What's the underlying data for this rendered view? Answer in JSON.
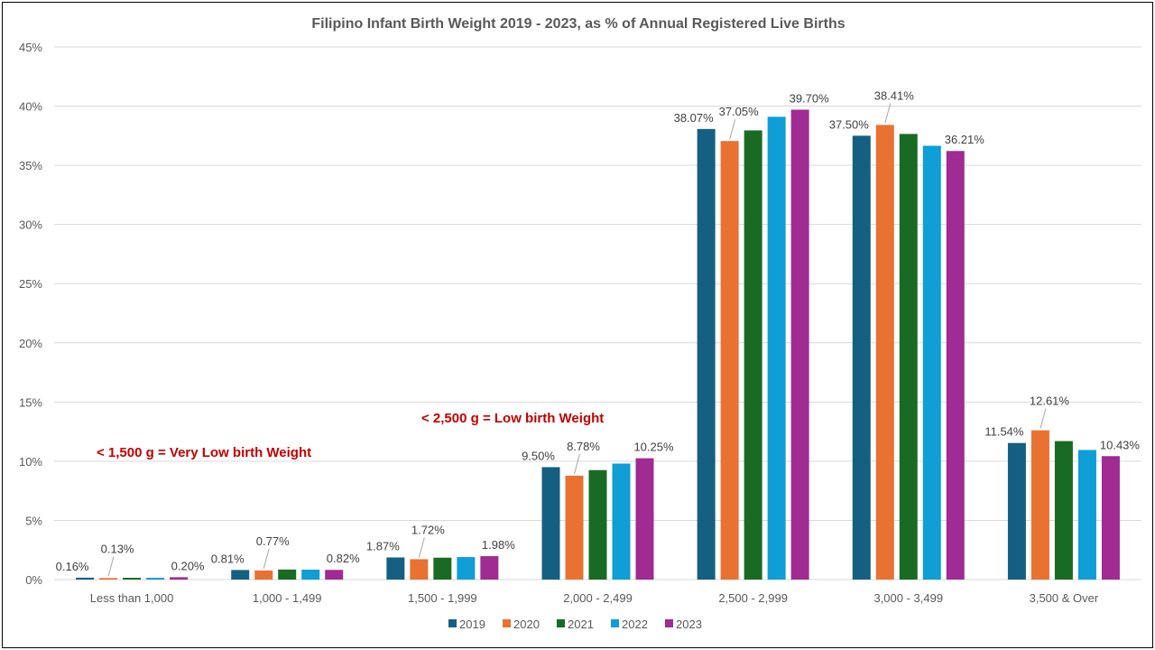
{
  "chart_data": {
    "type": "bar",
    "title": "Filipino Infant Birth Weight 2019 - 2023, as % of Annual Registered Live Births",
    "xlabel": "",
    "ylabel": "",
    "ylim": [
      0,
      45
    ],
    "y_ticks": [
      "0%",
      "5%",
      "10%",
      "15%",
      "20%",
      "25%",
      "30%",
      "35%",
      "40%",
      "45%"
    ],
    "grid": true,
    "legend_position": "bottom",
    "categories": [
      "Less than 1,000",
      "1,000 - 1,499",
      "1,500 - 1,999",
      "2,000 - 2,499",
      "2,500 - 2,999",
      "3,000 - 3,499",
      "3,500 & Over"
    ],
    "series": [
      {
        "name": "2019",
        "color": "#156082",
        "values": [
          0.16,
          0.81,
          1.87,
          9.5,
          38.07,
          37.5,
          11.54
        ]
      },
      {
        "name": "2020",
        "color": "#e97132",
        "values": [
          0.13,
          0.77,
          1.72,
          8.78,
          37.05,
          38.41,
          12.61
        ]
      },
      {
        "name": "2021",
        "color": "#196b24",
        "values": [
          0.15,
          0.85,
          1.85,
          9.25,
          37.95,
          37.65,
          11.7
        ]
      },
      {
        "name": "2022",
        "color": "#0f9ed5",
        "values": [
          0.15,
          0.84,
          1.9,
          9.8,
          39.1,
          36.65,
          10.95
        ]
      },
      {
        "name": "2023",
        "color": "#a02b93",
        "values": [
          0.2,
          0.82,
          1.98,
          10.25,
          39.7,
          36.21,
          10.43
        ]
      }
    ],
    "data_labels": [
      {
        "series": 0,
        "category": 0,
        "text": "0.16%"
      },
      {
        "series": 1,
        "category": 0,
        "text": "0.13%"
      },
      {
        "series": 4,
        "category": 0,
        "text": "0.20%"
      },
      {
        "series": 0,
        "category": 1,
        "text": "0.81%"
      },
      {
        "series": 1,
        "category": 1,
        "text": "0.77%"
      },
      {
        "series": 4,
        "category": 1,
        "text": "0.82%"
      },
      {
        "series": 0,
        "category": 2,
        "text": "1.87%"
      },
      {
        "series": 1,
        "category": 2,
        "text": "1.72%"
      },
      {
        "series": 4,
        "category": 2,
        "text": "1.98%"
      },
      {
        "series": 0,
        "category": 3,
        "text": "9.50%"
      },
      {
        "series": 1,
        "category": 3,
        "text": "8.78%"
      },
      {
        "series": 4,
        "category": 3,
        "text": "10.25%"
      },
      {
        "series": 0,
        "category": 4,
        "text": "38.07%"
      },
      {
        "series": 1,
        "category": 4,
        "text": "37.05%"
      },
      {
        "series": 4,
        "category": 4,
        "text": "39.70%"
      },
      {
        "series": 0,
        "category": 5,
        "text": "37.50%"
      },
      {
        "series": 1,
        "category": 5,
        "text": "38.41%"
      },
      {
        "series": 4,
        "category": 5,
        "text": "36.21%"
      },
      {
        "series": 0,
        "category": 6,
        "text": "11.54%"
      },
      {
        "series": 1,
        "category": 6,
        "text": "12.61%"
      },
      {
        "series": 4,
        "category": 6,
        "text": "10.43%"
      }
    ],
    "annotations": [
      {
        "text": "< 1,500 g  = Very Low birth Weight",
        "color": "#c00000"
      },
      {
        "text": "< 2,500 g  = Low birth Weight",
        "color": "#c00000"
      }
    ]
  }
}
